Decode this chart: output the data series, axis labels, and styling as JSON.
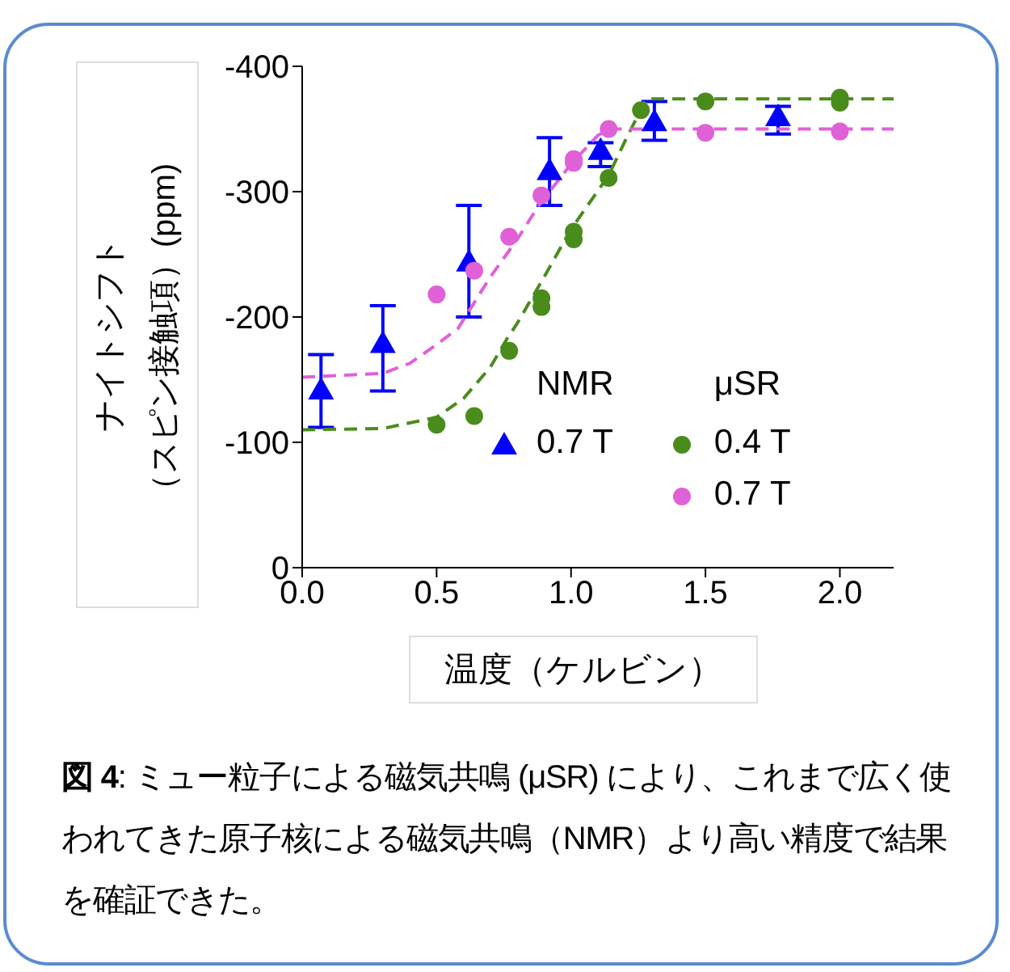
{
  "chart_data": {
    "type": "scatter",
    "xlabel": "温度（ケルビン）",
    "ylabel": "ナイトシフト（スピン接触項）(ppm)",
    "xlim": [
      0,
      2.2
    ],
    "xticks": [
      {
        "value": 0,
        "label": "0.0"
      },
      {
        "value": 0.5,
        "label": "0.5"
      },
      {
        "value": 1,
        "label": "1.0"
      },
      {
        "value": 1.5,
        "label": "1.5"
      },
      {
        "value": 2,
        "label": "2.0"
      }
    ],
    "ylim": [
      0,
      -400
    ],
    "yticks": [
      0,
      -100,
      -200,
      -300,
      -400
    ],
    "grid": false,
    "legend": "bottom right",
    "annotations": [
      "NMR",
      "μSR",
      "図 4: ミュー粒子による磁気共鳴 (μSR) により、これまで広く使われてきた原子核による磁気共鳴（NMR）より高い精度で結果を確証できた。"
    ],
    "series": [
      {
        "name": "0.7 T",
        "marker": "triangle",
        "color": "#0000ff",
        "x": [
          0.07,
          0.3,
          0.62,
          0.92,
          1.11,
          1.31,
          1.77
        ],
        "values": [
          -142,
          -179,
          -244,
          -317,
          -333,
          -356,
          -360
        ],
        "errors": [
          [
            -170,
            -112
          ],
          [
            -209,
            -141
          ],
          [
            -289,
            -200
          ],
          [
            -343,
            -289
          ],
          [
            -339,
            -320
          ],
          [
            -372,
            -341
          ],
          [
            -368,
            -346
          ]
        ]
      },
      {
        "name": "0.4 T",
        "marker": "circle",
        "color": "#4a8c1c",
        "x": [
          0.5,
          0.64,
          0.77,
          0.89,
          0.89,
          1.01,
          1.01,
          1.14,
          1.26,
          1.5,
          2.0,
          2.0
        ],
        "values": [
          -114,
          -121,
          -173,
          -208,
          -215,
          -262,
          -268,
          -311,
          -365,
          -372,
          -375,
          -371
        ]
      },
      {
        "name": "0.7 T",
        "marker": "circle",
        "color": "#e060d8",
        "x": [
          0.5,
          0.64,
          0.77,
          0.89,
          1.01,
          1.01,
          1.14,
          1.5,
          2.0
        ],
        "values": [
          -218,
          -237,
          -264,
          -297,
          -326,
          -323,
          -350,
          -347,
          -348
        ]
      },
      {
        "type": "line",
        "line_style": "dashed",
        "marker": "none",
        "color": "#4a8c1c",
        "x": [
          0,
          0.3,
          0.5,
          0.6,
          0.7,
          0.76,
          0.8,
          0.9,
          1.0,
          1.14,
          1.2,
          1.28,
          2.2
        ],
        "values": [
          -110,
          -111,
          -120,
          -135,
          -160,
          -182,
          -195,
          -232,
          -270,
          -313,
          -340,
          -374,
          -374
        ]
      },
      {
        "type": "line",
        "line_style": "dashed",
        "marker": "none",
        "color": "#e060d8",
        "x": [
          0,
          0.3,
          0.4,
          0.5,
          0.58,
          0.7,
          0.8,
          0.88,
          1.0,
          1.1,
          1.15,
          2.2
        ],
        "values": [
          -152,
          -155,
          -163,
          -178,
          -191,
          -232,
          -262,
          -289,
          -322,
          -345,
          -350,
          -350
        ]
      }
    ]
  }
}
